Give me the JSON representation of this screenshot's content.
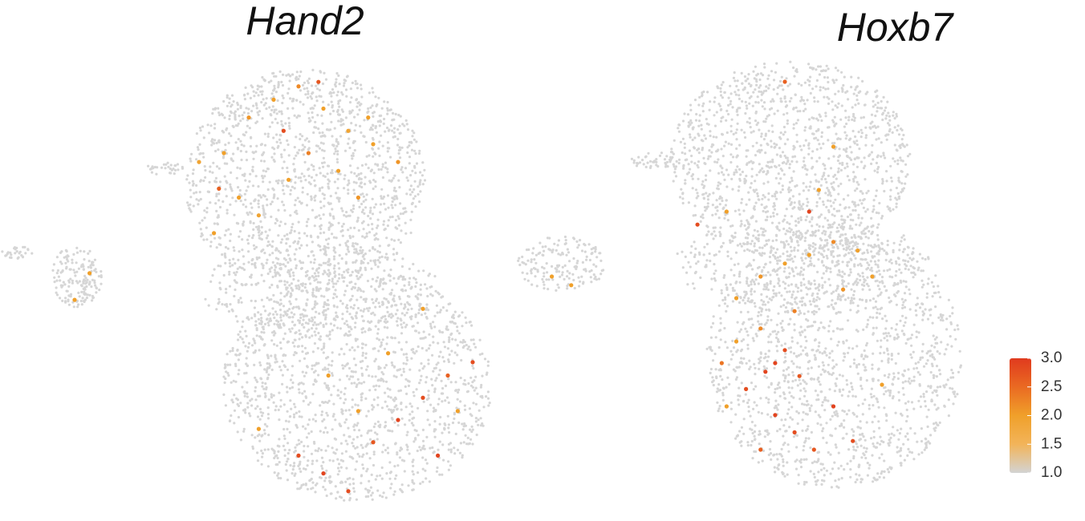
{
  "chart_data": [
    {
      "type": "scatter",
      "title": "Hand2",
      "xlim": [
        0,
        100
      ],
      "ylim": [
        0,
        100
      ],
      "x": [
        45,
        50,
        55,
        60,
        65,
        70,
        75,
        80,
        48,
        52,
        58,
        62,
        68,
        72,
        43,
        44,
        57,
        64,
        74,
        40,
        60,
        65,
        70,
        75,
        80,
        85,
        90,
        95,
        88,
        72,
        66,
        78,
        52,
        85,
        92,
        18,
        15
      ],
      "y": [
        80,
        88,
        92,
        95,
        90,
        85,
        82,
        78,
        70,
        66,
        74,
        80,
        76,
        70,
        62,
        72,
        85,
        96,
        88,
        78,
        12,
        8,
        4,
        15,
        20,
        25,
        30,
        33,
        12,
        22,
        30,
        35,
        18,
        45,
        22,
        53,
        47
      ],
      "values": [
        2.0,
        2.1,
        2.0,
        2.2,
        2.0,
        1.9,
        2.0,
        2.1,
        2.0,
        1.9,
        2.0,
        2.3,
        2.0,
        2.1,
        2.0,
        2.6,
        2.8,
        2.7,
        2.0,
        1.9,
        2.8,
        2.9,
        2.8,
        2.7,
        2.9,
        2.8,
        2.6,
        2.8,
        2.9,
        2.0,
        2.0,
        2.0,
        2.0,
        2.0,
        2.0,
        2.0,
        2.0
      ]
    },
    {
      "type": "scatter",
      "title": "Hoxb7",
      "xlim": [
        0,
        100
      ],
      "ylim": [
        0,
        100
      ],
      "x": [
        50,
        55,
        60,
        65,
        70,
        75,
        78,
        72,
        62,
        55,
        50,
        47,
        58,
        60,
        56,
        63,
        52,
        58,
        62,
        66,
        70,
        74,
        55,
        80,
        48,
        67,
        70,
        60,
        48,
        42,
        65,
        16,
        12
      ],
      "y": [
        45,
        50,
        53,
        55,
        58,
        56,
        50,
        47,
        42,
        38,
        35,
        30,
        30,
        33,
        28,
        27,
        24,
        18,
        14,
        10,
        20,
        12,
        10,
        25,
        20,
        70,
        80,
        95,
        65,
        62,
        65,
        48,
        50
      ],
      "values": [
        2.0,
        2.1,
        2.0,
        2.0,
        2.2,
        2.0,
        2.0,
        2.1,
        2.3,
        2.2,
        2.0,
        2.4,
        2.9,
        2.8,
        2.9,
        2.7,
        2.8,
        2.9,
        2.8,
        2.7,
        2.9,
        2.8,
        2.6,
        2.0,
        2.0,
        2.0,
        2.0,
        2.6,
        2.0,
        2.8,
        2.9,
        2.0,
        2.0
      ],
      "colorbar": {
        "lim": [
          1.0,
          3.0
        ],
        "colors": [
          "#d3d3d3",
          "#f2b45a",
          "#f0a02a",
          "#ea6a22",
          "#e03a1e"
        ],
        "ticks": [
          {
            "value": 1.0,
            "label": "1.0"
          },
          {
            "value": 1.5,
            "label": "1.5"
          },
          {
            "value": 2.0,
            "label": "2.0"
          },
          {
            "value": 2.5,
            "label": "2.5"
          },
          {
            "value": 3.0,
            "label": "3.0"
          }
        ]
      }
    }
  ]
}
